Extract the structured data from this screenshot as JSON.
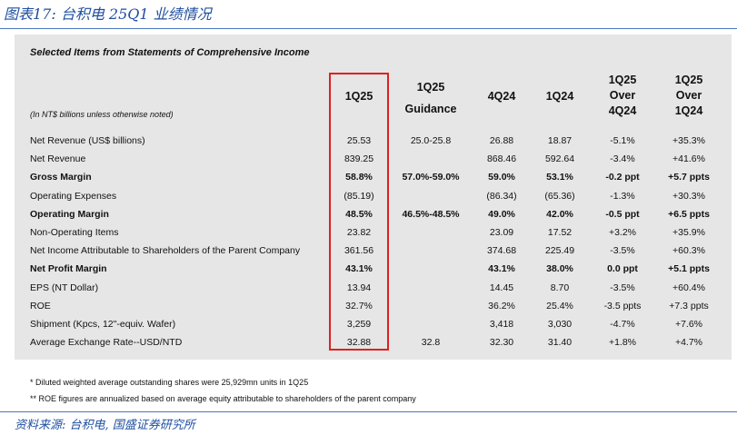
{
  "figure_title": "图表17:  台积电 25Q1 业绩情况",
  "panel_title": "Selected Items from Statements of Comprehensive Income",
  "unit_note": "(In NT$ billions unless otherwise noted)",
  "columns": {
    "q125": [
      "1Q25"
    ],
    "guidance": [
      "1Q25",
      "Guidance"
    ],
    "q424": [
      "4Q24"
    ],
    "q124": [
      "1Q24"
    ],
    "over4q": [
      "1Q25",
      "Over",
      "4Q24"
    ],
    "over1q": [
      "1Q25",
      "Over",
      "1Q24"
    ]
  },
  "rows": [
    {
      "label": "Net Revenue (US$ billions)",
      "bold": false,
      "q125": "25.53",
      "guidance": "25.0-25.8",
      "q424": "26.88",
      "q124": "18.87",
      "over4q": "-5.1%",
      "over1q": "+35.3%"
    },
    {
      "label": "Net Revenue",
      "bold": false,
      "q125": "839.25",
      "guidance": "",
      "q424": "868.46",
      "q124": "592.64",
      "over4q": "-3.4%",
      "over1q": "+41.6%"
    },
    {
      "label": "Gross Margin",
      "bold": true,
      "q125": "58.8%",
      "guidance": "57.0%-59.0%",
      "q424": "59.0%",
      "q124": "53.1%",
      "over4q": "-0.2 ppt",
      "over1q": "+5.7 ppts"
    },
    {
      "label": "Operating Expenses",
      "bold": false,
      "q125": "(85.19)",
      "guidance": "",
      "q424": "(86.34)",
      "q124": "(65.36)",
      "over4q": "-1.3%",
      "over1q": "+30.3%"
    },
    {
      "label": "Operating Margin",
      "bold": true,
      "q125": "48.5%",
      "guidance": "46.5%-48.5%",
      "q424": "49.0%",
      "q124": "42.0%",
      "over4q": "-0.5 ppt",
      "over1q": "+6.5 ppts"
    },
    {
      "label": "Non-Operating Items",
      "bold": false,
      "q125": "23.82",
      "guidance": "",
      "q424": "23.09",
      "q124": "17.52",
      "over4q": "+3.2%",
      "over1q": "+35.9%"
    },
    {
      "label": "Net Income Attributable to Shareholders of the Parent Company",
      "bold": false,
      "q125": "361.56",
      "guidance": "",
      "q424": "374.68",
      "q124": "225.49",
      "over4q": "-3.5%",
      "over1q": "+60.3%"
    },
    {
      "label": "Net Profit Margin",
      "bold": true,
      "q125": "43.1%",
      "guidance": "",
      "q424": "43.1%",
      "q124": "38.0%",
      "over4q": "0.0 ppt",
      "over1q": "+5.1 ppts"
    },
    {
      "label": "EPS (NT Dollar)",
      "bold": false,
      "q125": "13.94",
      "guidance": "",
      "q424": "14.45",
      "q124": "8.70",
      "over4q": "-3.5%",
      "over1q": "+60.4%"
    },
    {
      "label": "ROE",
      "bold": false,
      "q125": "32.7%",
      "guidance": "",
      "q424": "36.2%",
      "q124": "25.4%",
      "over4q": "-3.5 ppts",
      "over1q": "+7.3 ppts"
    },
    {
      "label": "Shipment (Kpcs, 12\"-equiv. Wafer)",
      "bold": false,
      "q125": "3,259",
      "guidance": "",
      "q424": "3,418",
      "q124": "3,030",
      "over4q": "-4.7%",
      "over1q": "+7.6%"
    },
    {
      "label": "Average Exchange Rate--USD/NTD",
      "bold": false,
      "q125": "32.88",
      "guidance": "32.8",
      "q424": "32.30",
      "q124": "31.40",
      "over4q": "+1.8%",
      "over1q": "+4.7%"
    }
  ],
  "footnotes": [
    "*   Diluted weighted average outstanding shares were 25,929mn units in 1Q25",
    "** ROE figures are annualized based on average equity attributable to shareholders of the parent company"
  ],
  "source": "资料来源:  台积电,  国盛证券研究所",
  "colors": {
    "title_blue": "#1f4fa0",
    "highlight_red": "#e02020",
    "panel_gray": "#e6e6e6"
  }
}
